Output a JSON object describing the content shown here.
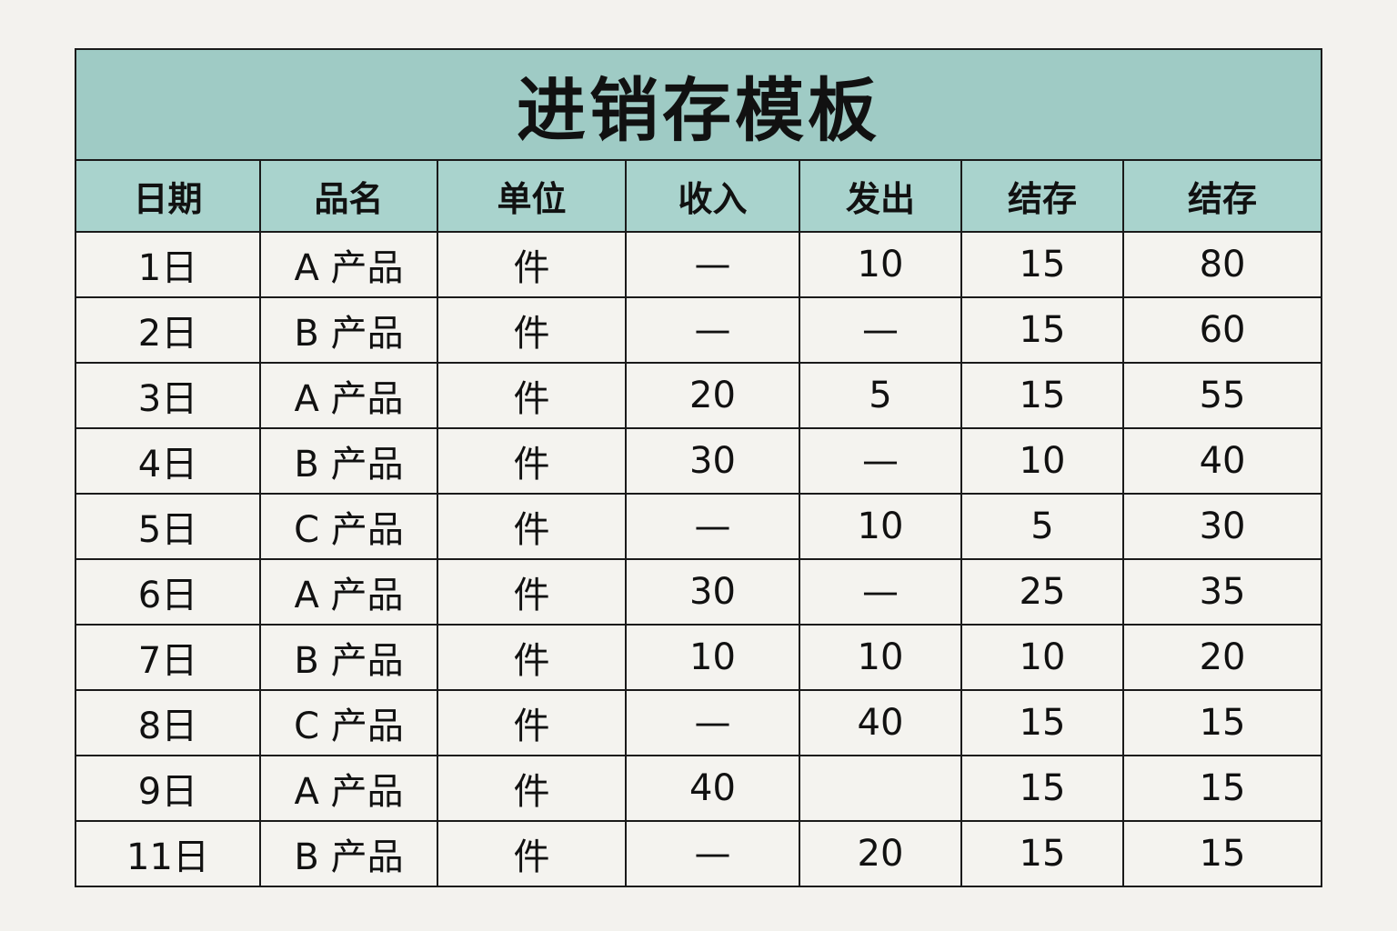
{
  "title": "进销存模板",
  "colors": {
    "title_bg": "#9fcbc5",
    "header_bg": "#a9d3cd",
    "body_bg": "#f4f3ef",
    "border": "#1a1a1a"
  },
  "headers": [
    "日期",
    "品名",
    "单位",
    "收入",
    "发出",
    "结存",
    "结存"
  ],
  "rows": [
    [
      "1日",
      "A 产品",
      "件",
      "—",
      "10",
      "15",
      "80"
    ],
    [
      "2日",
      "B 产品",
      "件",
      "—",
      "—",
      "15",
      "60"
    ],
    [
      "3日",
      "A 产品",
      "件",
      "20",
      "5",
      "15",
      "55"
    ],
    [
      "4日",
      "B 产品",
      "件",
      "30",
      "—",
      "10",
      "40"
    ],
    [
      "5日",
      "C 产品",
      "件",
      "—",
      "10",
      "5",
      "30"
    ],
    [
      "6日",
      "A 产品",
      "件",
      "30",
      "—",
      "25",
      "35"
    ],
    [
      "7日",
      "B 产品",
      "件",
      "10",
      "10",
      "10",
      "20"
    ],
    [
      "8日",
      "C 产品",
      "件",
      "—",
      "40",
      "15",
      "15"
    ],
    [
      "9日",
      "A 产品",
      "件",
      "40",
      "",
      "15",
      "15"
    ],
    [
      "11日",
      "B 产品",
      "件",
      "—",
      "20",
      "15",
      "15"
    ]
  ]
}
